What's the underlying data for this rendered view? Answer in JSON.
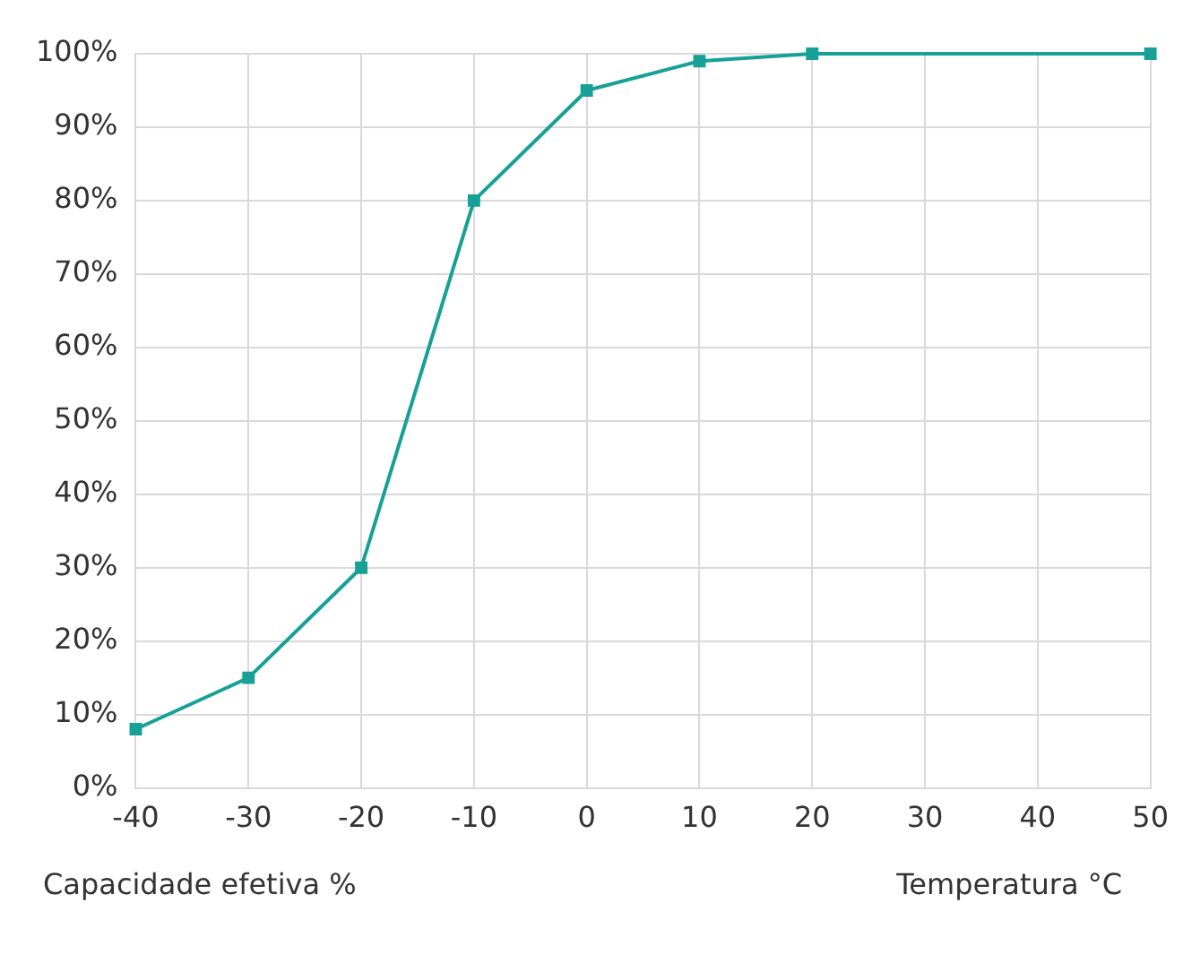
{
  "chart_data": {
    "type": "line",
    "xlabel": "Temperatura °C",
    "ylabel": "Capacidade efetiva %",
    "x": [
      -40,
      -30,
      -20,
      -10,
      0,
      10,
      20,
      50
    ],
    "series": [
      {
        "color": "#16a096",
        "values": [
          8,
          15,
          30,
          80,
          95,
          99,
          100,
          100
        ]
      }
    ],
    "xlim": [
      -40,
      50
    ],
    "xticks": [
      -40,
      -30,
      -20,
      -10,
      0,
      10,
      20,
      30,
      40,
      50
    ],
    "ylim": [
      0,
      100
    ],
    "yticks": [
      {
        "value": 0,
        "label": "0%"
      },
      {
        "value": 10,
        "label": "10%"
      },
      {
        "value": 20,
        "label": "20%"
      },
      {
        "value": 30,
        "label": "30%"
      },
      {
        "value": 40,
        "label": "40%"
      },
      {
        "value": 50,
        "label": "50%"
      },
      {
        "value": 60,
        "label": "60%"
      },
      {
        "value": 70,
        "label": "70%"
      },
      {
        "value": 80,
        "label": "80%"
      },
      {
        "value": 90,
        "label": "90%"
      },
      {
        "value": 100,
        "label": "100%"
      }
    ],
    "grid": true,
    "marker": "square",
    "line_style": "solid",
    "legend": false
  }
}
